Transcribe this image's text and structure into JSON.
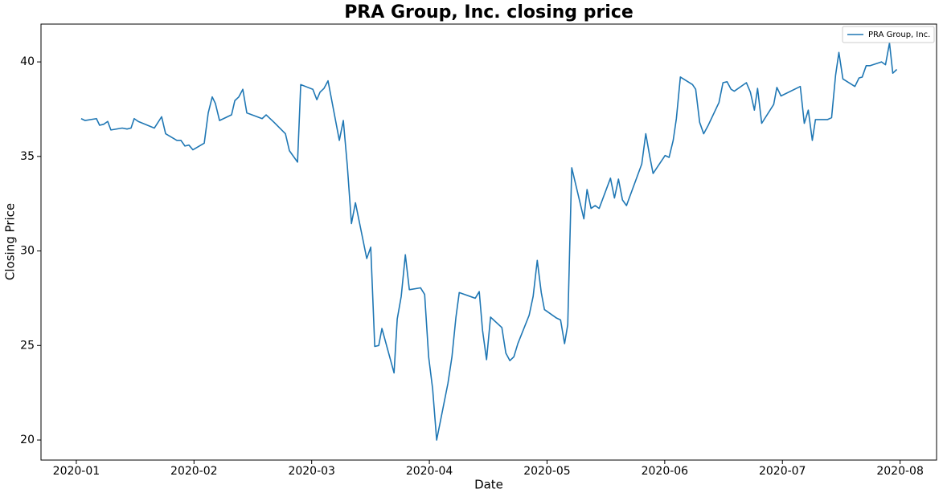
{
  "chart_data": {
    "type": "line",
    "title": "PRA Group, Inc. closing price",
    "x_label": "Date",
    "y_label": "Closing Price",
    "xlim": [
      -0.3,
      7.31
    ],
    "ylim": [
      18.94,
      42.0
    ],
    "xticks": [
      {
        "value": 0,
        "label": "2020-01"
      },
      {
        "value": 1,
        "label": "2020-02"
      },
      {
        "value": 2,
        "label": "2020-03"
      },
      {
        "value": 3,
        "label": "2020-04"
      },
      {
        "value": 4,
        "label": "2020-05"
      },
      {
        "value": 5,
        "label": "2020-06"
      },
      {
        "value": 6,
        "label": "2020-07"
      },
      {
        "value": 7,
        "label": "2020-08"
      }
    ],
    "yticks": [
      20,
      25,
      30,
      35,
      40
    ],
    "grid": false,
    "legend": "upper right",
    "x": [
      0.041,
      0.075,
      0.171,
      0.198,
      0.232,
      0.267,
      0.294,
      0.39,
      0.431,
      0.465,
      0.492,
      0.526,
      0.663,
      0.725,
      0.759,
      0.854,
      0.889,
      0.923,
      0.957,
      0.991,
      1.087,
      1.121,
      1.155,
      1.182,
      1.217,
      1.319,
      1.347,
      1.381,
      1.415,
      1.449,
      1.579,
      1.613,
      1.681,
      1.777,
      1.811,
      1.88,
      1.907,
      2.01,
      2.044,
      2.071,
      2.105,
      2.139,
      2.235,
      2.269,
      2.303,
      2.338,
      2.372,
      2.468,
      2.502,
      2.536,
      2.57,
      2.597,
      2.7,
      2.727,
      2.761,
      2.796,
      2.83,
      2.925,
      2.96,
      2.994,
      3.028,
      3.062,
      3.158,
      3.192,
      3.226,
      3.254,
      3.39,
      3.424,
      3.452,
      3.486,
      3.52,
      3.616,
      3.65,
      3.684,
      3.718,
      3.752,
      3.848,
      3.882,
      3.917,
      3.951,
      3.978,
      4.081,
      4.115,
      4.149,
      4.176,
      4.21,
      4.313,
      4.34,
      4.374,
      4.409,
      4.443,
      4.539,
      4.573,
      4.607,
      4.641,
      4.675,
      4.805,
      4.839,
      4.873,
      4.901,
      5.003,
      5.037,
      5.072,
      5.099,
      5.133,
      5.236,
      5.263,
      5.297,
      5.331,
      5.366,
      5.461,
      5.495,
      5.53,
      5.564,
      5.591,
      5.694,
      5.728,
      5.762,
      5.789,
      5.824,
      5.926,
      5.953,
      5.988,
      6.152,
      6.186,
      6.22,
      6.254,
      6.281,
      6.384,
      6.418,
      6.452,
      6.48,
      6.514,
      6.616,
      6.651,
      6.678,
      6.712,
      6.746,
      6.842,
      6.876,
      6.91,
      6.938,
      6.972
    ],
    "series": [
      {
        "name": "PRA Group, Inc.",
        "color": "#1f77b4",
        "values": [
          37.0,
          36.9,
          37.0,
          36.65,
          36.7,
          36.85,
          36.4,
          36.5,
          36.45,
          36.5,
          37.0,
          36.85,
          36.5,
          37.1,
          36.2,
          35.85,
          35.85,
          35.55,
          35.6,
          35.35,
          35.7,
          37.3,
          38.15,
          37.8,
          36.9,
          37.2,
          37.95,
          38.15,
          38.55,
          37.3,
          37.0,
          37.2,
          36.8,
          36.2,
          35.3,
          34.7,
          38.8,
          38.55,
          38.0,
          38.4,
          38.6,
          39.0,
          35.85,
          36.9,
          34.5,
          31.45,
          32.55,
          29.6,
          30.2,
          24.95,
          25.0,
          25.9,
          23.55,
          26.4,
          27.6,
          29.8,
          27.95,
          28.05,
          27.7,
          24.4,
          22.7,
          20.0,
          23.0,
          24.4,
          26.5,
          27.8,
          27.5,
          27.85,
          25.8,
          24.25,
          26.5,
          25.95,
          24.6,
          24.2,
          24.4,
          25.1,
          26.6,
          27.6,
          29.5,
          27.8,
          26.9,
          26.45,
          26.35,
          25.1,
          26.1,
          34.4,
          31.7,
          33.25,
          32.25,
          32.4,
          32.25,
          33.85,
          32.8,
          33.8,
          32.7,
          32.4,
          34.6,
          36.2,
          35.0,
          34.1,
          35.05,
          34.95,
          35.85,
          37.0,
          39.2,
          38.8,
          38.55,
          36.8,
          36.2,
          36.6,
          37.85,
          38.9,
          38.95,
          38.55,
          38.45,
          38.9,
          38.4,
          37.45,
          38.6,
          36.75,
          37.75,
          38.65,
          38.2,
          38.7,
          36.75,
          37.45,
          35.85,
          36.95,
          36.95,
          37.05,
          39.3,
          40.5,
          39.1,
          38.7,
          39.15,
          39.2,
          39.8,
          39.8,
          40.0,
          39.85,
          41.0,
          39.4,
          39.6
        ]
      }
    ]
  }
}
